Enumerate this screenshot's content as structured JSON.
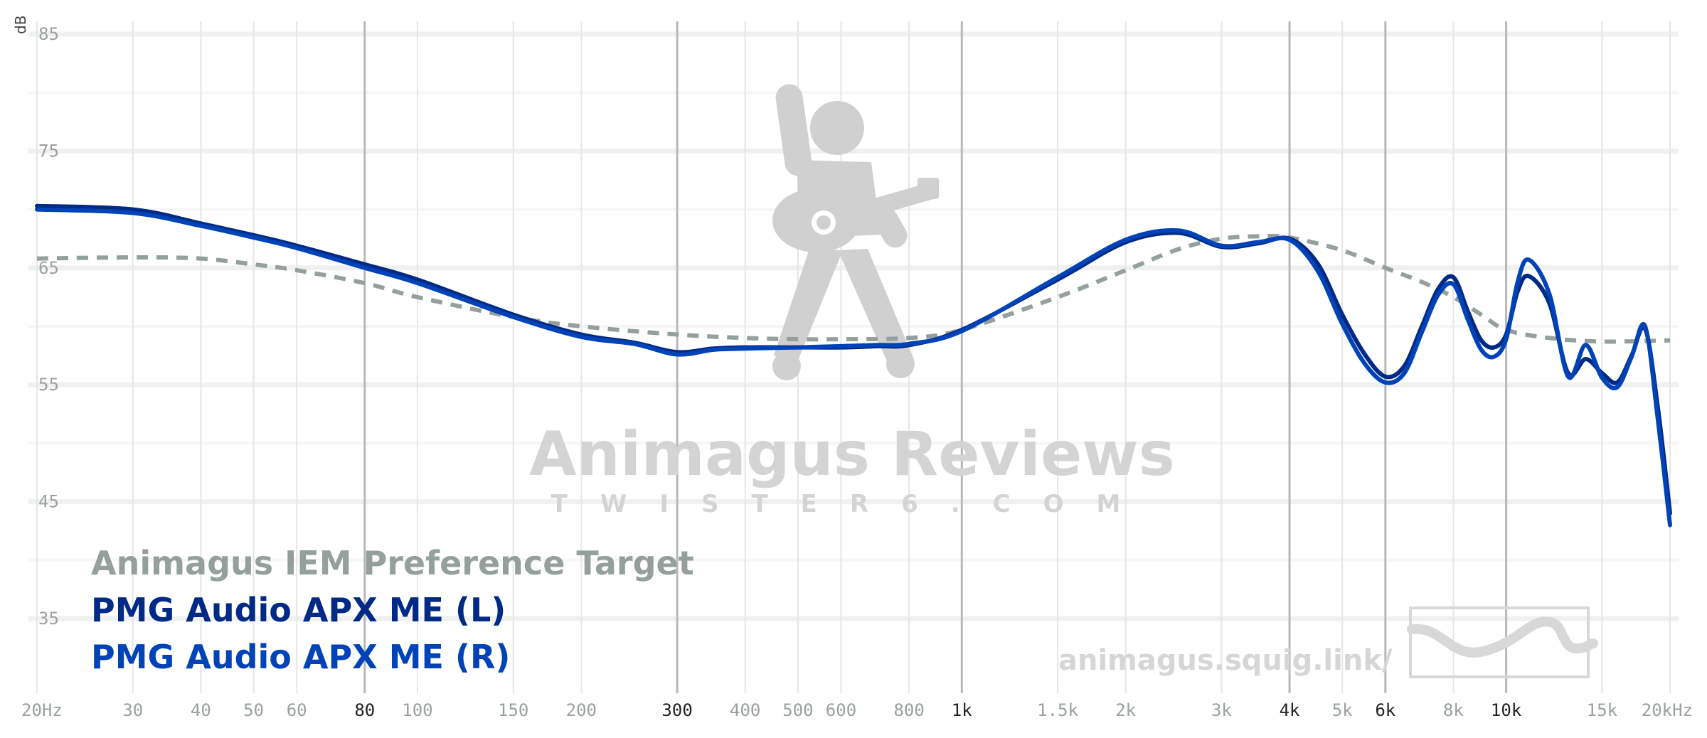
{
  "chart_data": {
    "type": "line",
    "title": "",
    "xlabel": "",
    "ylabel": "dB",
    "x_scale": "log",
    "xlim": [
      20,
      20000
    ],
    "ylim": [
      30,
      87
    ],
    "grid": true,
    "legend_position": "bottom-left",
    "x_ticks": [
      {
        "value": 20,
        "label": "20Hz",
        "major": false
      },
      {
        "value": 30,
        "label": "30",
        "major": false
      },
      {
        "value": 40,
        "label": "40",
        "major": false
      },
      {
        "value": 50,
        "label": "50",
        "major": false
      },
      {
        "value": 60,
        "label": "60",
        "major": false
      },
      {
        "value": 80,
        "label": "80",
        "major": true
      },
      {
        "value": 100,
        "label": "100",
        "major": false
      },
      {
        "value": 150,
        "label": "150",
        "major": false
      },
      {
        "value": 200,
        "label": "200",
        "major": false
      },
      {
        "value": 300,
        "label": "300",
        "major": true
      },
      {
        "value": 400,
        "label": "400",
        "major": false
      },
      {
        "value": 500,
        "label": "500",
        "major": false
      },
      {
        "value": 600,
        "label": "600",
        "major": false
      },
      {
        "value": 800,
        "label": "800",
        "major": false
      },
      {
        "value": 1000,
        "label": "1k",
        "major": true
      },
      {
        "value": 1500,
        "label": "1.5k",
        "major": false
      },
      {
        "value": 2000,
        "label": "2k",
        "major": false
      },
      {
        "value": 3000,
        "label": "3k",
        "major": false
      },
      {
        "value": 4000,
        "label": "4k",
        "major": true
      },
      {
        "value": 5000,
        "label": "5k",
        "major": false
      },
      {
        "value": 6000,
        "label": "6k",
        "major": true
      },
      {
        "value": 8000,
        "label": "8k",
        "major": false
      },
      {
        "value": 10000,
        "label": "10k",
        "major": true
      },
      {
        "value": 15000,
        "label": "15k",
        "major": false
      },
      {
        "value": 20000,
        "label": "20kHz",
        "major": false
      }
    ],
    "y_ticks": [
      {
        "value": 85,
        "label": "85"
      },
      {
        "value": 75,
        "label": "75"
      },
      {
        "value": 65,
        "label": "65"
      },
      {
        "value": 55,
        "label": "55"
      },
      {
        "value": 45,
        "label": "45"
      },
      {
        "value": 35,
        "label": "35"
      }
    ],
    "series": [
      {
        "name": "Animagus IEM Preference Target",
        "color": "#95a09d",
        "dashed": true,
        "x": [
          20,
          30,
          40,
          50,
          60,
          80,
          100,
          150,
          200,
          300,
          400,
          500,
          600,
          800,
          1000,
          1500,
          2000,
          2500,
          3000,
          3500,
          4000,
          5000,
          6000,
          7000,
          8000,
          9000,
          10000,
          12000,
          15000,
          20000
        ],
        "y": [
          65.8,
          65.9,
          65.8,
          65.3,
          64.8,
          63.7,
          62.5,
          60.8,
          60.0,
          59.3,
          59.0,
          58.9,
          58.9,
          59.0,
          59.7,
          62.5,
          64.8,
          66.6,
          67.5,
          67.7,
          67.6,
          66.5,
          65.0,
          63.8,
          62.5,
          61.0,
          59.7,
          59.0,
          58.7,
          58.8
        ]
      },
      {
        "name": "PMG Audio APX ME (L)",
        "color": "#002a86",
        "dashed": false,
        "x": [
          20,
          30,
          40,
          50,
          60,
          80,
          100,
          150,
          200,
          250,
          300,
          350,
          400,
          500,
          600,
          700,
          800,
          1000,
          1500,
          2000,
          2500,
          3000,
          3500,
          4000,
          4500,
          5000,
          5500,
          6000,
          6500,
          7000,
          7500,
          8000,
          8500,
          9000,
          9500,
          10000,
          10500,
          11000,
          12000,
          13000,
          14000,
          15000,
          16000,
          17000,
          18000,
          19000,
          20000
        ],
        "y": [
          70.3,
          70.0,
          68.8,
          67.8,
          66.9,
          65.3,
          64.0,
          61.0,
          59.3,
          58.6,
          57.8,
          58.1,
          58.2,
          58.2,
          58.2,
          58.3,
          58.4,
          59.7,
          64.0,
          67.2,
          68.0,
          66.8,
          67.1,
          67.5,
          65.4,
          61.0,
          57.6,
          55.7,
          56.6,
          60.0,
          63.2,
          64.2,
          61.3,
          58.8,
          58.2,
          59.3,
          63.0,
          64.3,
          62.0,
          56.0,
          57.2,
          56.0,
          55.2,
          57.5,
          59.8,
          53.0,
          44.0
        ]
      },
      {
        "name": "PMG Audio APX ME (R)",
        "color": "#0043b8",
        "dashed": false,
        "x": [
          20,
          30,
          40,
          50,
          60,
          80,
          100,
          150,
          200,
          250,
          300,
          350,
          400,
          500,
          600,
          700,
          800,
          1000,
          1500,
          2000,
          2500,
          3000,
          3500,
          4000,
          4500,
          5000,
          5500,
          6000,
          6500,
          7000,
          7500,
          8000,
          8500,
          9000,
          9500,
          10000,
          10500,
          11000,
          12000,
          13000,
          14000,
          15000,
          16000,
          17000,
          18000,
          19000,
          20000
        ],
        "y": [
          70.0,
          69.7,
          68.6,
          67.6,
          66.7,
          65.0,
          63.7,
          60.8,
          59.1,
          58.5,
          57.6,
          58.0,
          58.1,
          58.2,
          58.3,
          58.4,
          58.5,
          59.6,
          64.2,
          67.4,
          68.2,
          66.9,
          67.2,
          67.4,
          64.8,
          60.2,
          56.8,
          55.2,
          56.0,
          59.5,
          62.7,
          63.6,
          60.6,
          58.0,
          57.4,
          58.9,
          63.8,
          65.7,
          62.8,
          55.7,
          58.4,
          55.6,
          54.8,
          57.4,
          60.0,
          52.0,
          43.0
        ]
      }
    ]
  },
  "watermark": {
    "title": "Animagus Reviews",
    "subtitle": "TWISTER6.COM",
    "url": "animagus.squig.link/"
  }
}
